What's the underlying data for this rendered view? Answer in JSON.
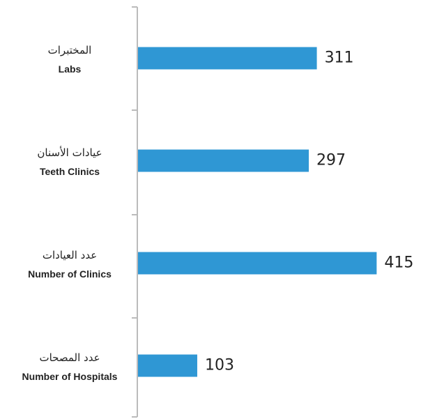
{
  "chart_data": {
    "type": "bar",
    "orientation": "horizontal",
    "categories": [
      "Labs",
      "Teeth Clinics",
      "Number of Clinics",
      "Number of Hospitals"
    ],
    "categories_ar": [
      "المختبرات",
      "عيادات الأسنان",
      "عدد العيادات",
      "عدد المصحات"
    ],
    "values": [
      311,
      297,
      415,
      103
    ],
    "color": "#2f97d4"
  }
}
